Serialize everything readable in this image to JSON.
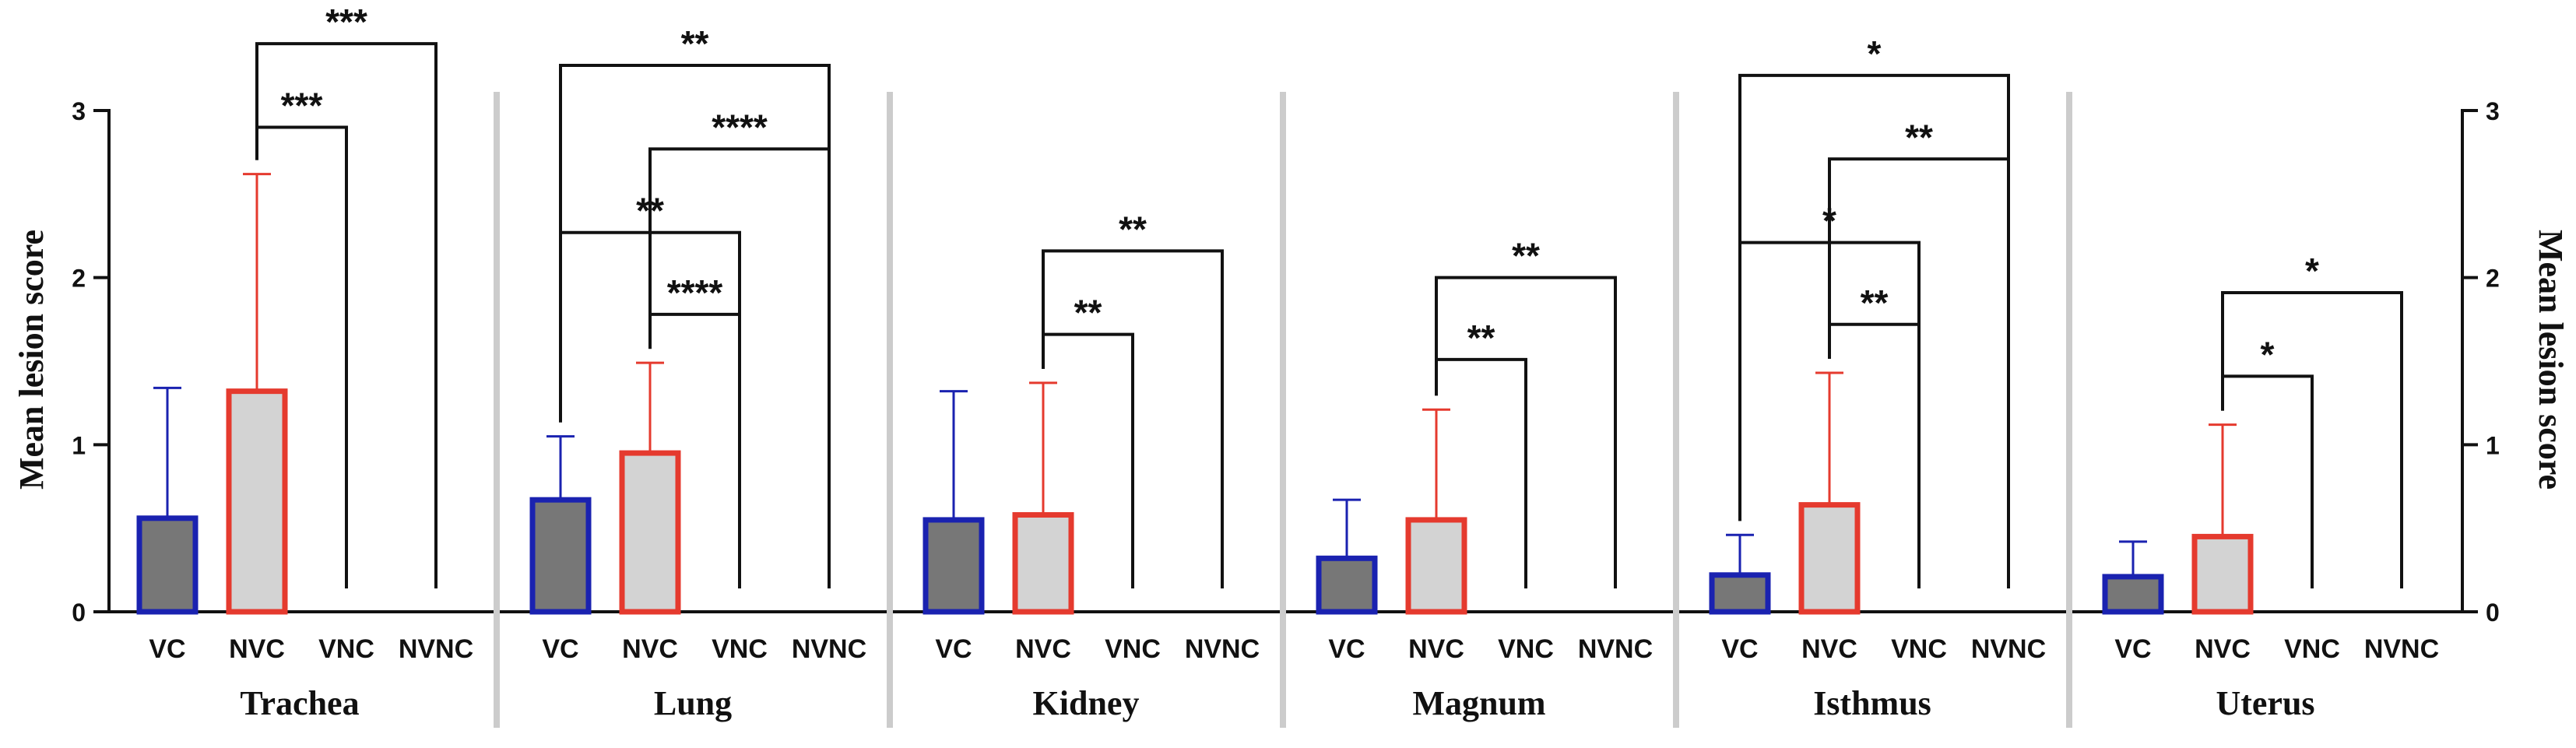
{
  "chart_data": {
    "type": "bar",
    "ylabel_left": "Mean lesion score",
    "ylabel_right": "Mean lesion score",
    "ylim": [
      0,
      3
    ],
    "yticks": [
      "0",
      "1",
      "2",
      "3"
    ],
    "categories": [
      "VC",
      "NVC",
      "VNC",
      "NVNC"
    ],
    "colors": {
      "vc_fill": "#777777",
      "vc_edge": "#1a22b0",
      "nvc_fill": "#d3d3d3",
      "nvc_edge": "#e53a2e",
      "separator": "#cccccc"
    },
    "panels": [
      {
        "name": "Trachea",
        "values": [
          0.56,
          1.32,
          0,
          0
        ],
        "errors": [
          0.78,
          1.3,
          0,
          0
        ],
        "comparisons": [
          {
            "from": "NVC",
            "to": "VNC",
            "label": "***",
            "y": 2.9
          },
          {
            "from": "NVC",
            "to": "NVNC",
            "label": "***",
            "y": 3.4
          }
        ]
      },
      {
        "name": "Lung",
        "values": [
          0.67,
          0.95,
          0,
          0
        ],
        "errors": [
          0.38,
          0.54,
          0,
          0
        ],
        "comparisons": [
          {
            "from": "NVC",
            "to": "VNC",
            "label": "****",
            "y": 1.78
          },
          {
            "from": "VC",
            "to": "VNC",
            "label": "**",
            "y": 2.27
          },
          {
            "from": "NVC",
            "to": "NVNC",
            "label": "****",
            "y": 2.77
          },
          {
            "from": "VC",
            "to": "NVNC",
            "label": "**",
            "y": 3.27
          }
        ]
      },
      {
        "name": "Kidney",
        "values": [
          0.55,
          0.58,
          0,
          0
        ],
        "errors": [
          0.77,
          0.79,
          0,
          0
        ],
        "comparisons": [
          {
            "from": "NVC",
            "to": "VNC",
            "label": "**",
            "y": 1.66
          },
          {
            "from": "NVC",
            "to": "NVNC",
            "label": "**",
            "y": 2.16
          }
        ]
      },
      {
        "name": "Magnum",
        "values": [
          0.32,
          0.55,
          0,
          0
        ],
        "errors": [
          0.35,
          0.66,
          0,
          0
        ],
        "comparisons": [
          {
            "from": "NVC",
            "to": "VNC",
            "label": "**",
            "y": 1.51
          },
          {
            "from": "NVC",
            "to": "NVNC",
            "label": "**",
            "y": 2.0
          }
        ]
      },
      {
        "name": "Isthmus",
        "values": [
          0.22,
          0.64,
          0,
          0
        ],
        "errors": [
          0.24,
          0.79,
          0,
          0
        ],
        "comparisons": [
          {
            "from": "NVC",
            "to": "VNC",
            "label": "**",
            "y": 1.72
          },
          {
            "from": "VC",
            "to": "VNC",
            "label": "*",
            "y": 2.21
          },
          {
            "from": "NVC",
            "to": "NVNC",
            "label": "**",
            "y": 2.71
          },
          {
            "from": "VC",
            "to": "NVNC",
            "label": "*",
            "y": 3.21
          }
        ]
      },
      {
        "name": "Uterus",
        "values": [
          0.21,
          0.45,
          0,
          0
        ],
        "errors": [
          0.21,
          0.67,
          0,
          0
        ],
        "comparisons": [
          {
            "from": "NVC",
            "to": "VNC",
            "label": "*",
            "y": 1.41
          },
          {
            "from": "NVC",
            "to": "NVNC",
            "label": "*",
            "y": 1.91
          }
        ]
      }
    ]
  }
}
